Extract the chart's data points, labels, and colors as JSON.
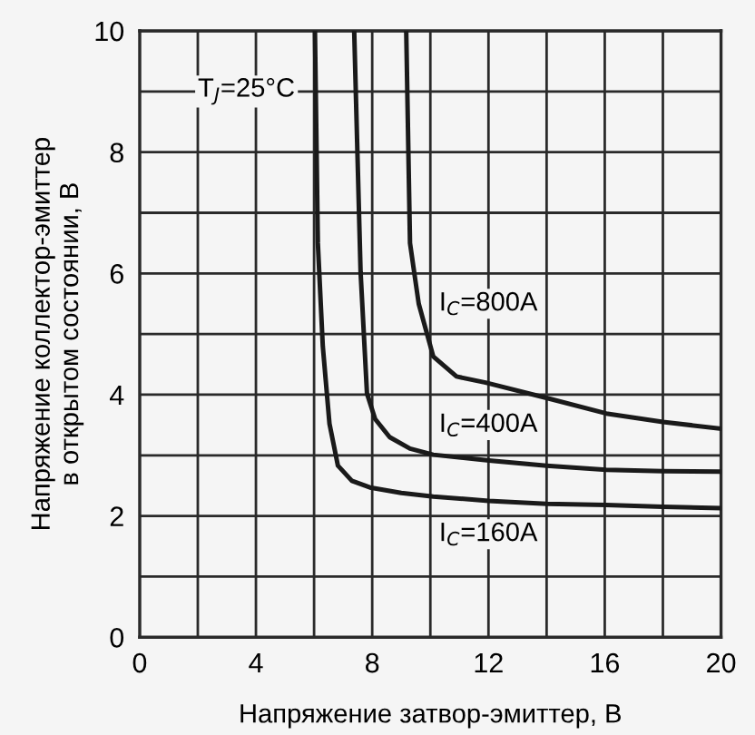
{
  "chart_data": {
    "type": "line",
    "xlabel": "Напряжение затвор-эмиттер, В",
    "ylabel": "Напряжение коллектор-эмиттер\nв открытом состоянии, В",
    "xlim": [
      0,
      20
    ],
    "ylim": [
      0,
      10
    ],
    "xticks": [
      0,
      {
        "value": 2,
        "label": null
      },
      4,
      {
        "value": 6,
        "label": null
      },
      8,
      {
        "value": 10,
        "label": null
      },
      12,
      {
        "value": 14,
        "label": null
      },
      16,
      {
        "value": 18,
        "label": null
      },
      20
    ],
    "yticks": [
      0,
      {
        "value": 1,
        "label": null
      },
      2,
      {
        "value": 3,
        "label": null
      },
      4,
      {
        "value": 5,
        "label": null
      },
      6,
      {
        "value": 7,
        "label": null
      },
      8,
      {
        "value": 9,
        "label": null
      },
      10
    ],
    "grid": true,
    "marker": "none",
    "line_style": "solid",
    "legend": false,
    "series": [
      {
        "color": "#1a1a1a",
        "x": [
          6.03,
          6.13,
          6.3,
          6.53,
          6.82,
          7.3,
          7.92,
          9,
          10.1,
          12,
          14,
          16.05,
          18,
          20
        ],
        "values": [
          10,
          6.5,
          4.8,
          3.52,
          2.83,
          2.58,
          2.47,
          2.38,
          2.32,
          2.25,
          2.2,
          2.18,
          2.15,
          2.13
        ]
      },
      {
        "color": "#1a1a1a",
        "x": [
          7.38,
          7.6,
          7.82,
          8.1,
          8.6,
          9.3,
          10.1,
          12.1,
          14,
          16.05,
          18,
          20
        ],
        "values": [
          10,
          6.02,
          4.02,
          3.6,
          3.3,
          3.11,
          3.01,
          2.91,
          2.83,
          2.76,
          2.74,
          2.73
        ]
      },
      {
        "color": "#1a1a1a",
        "x": [
          9.17,
          9.3,
          9.6,
          10.1,
          10.9,
          11.9,
          14.05,
          16.05,
          18,
          20
        ],
        "values": [
          10,
          6.5,
          5.5,
          4.63,
          4.3,
          4.2,
          3.94,
          3.69,
          3.55,
          3.44
        ]
      }
    ],
    "annotations": [
      "I$_{C}$=800A",
      "I$_{C}$=400A",
      "I$_{C}$=160A",
      "T$_{J}$=25°C"
    ]
  }
}
